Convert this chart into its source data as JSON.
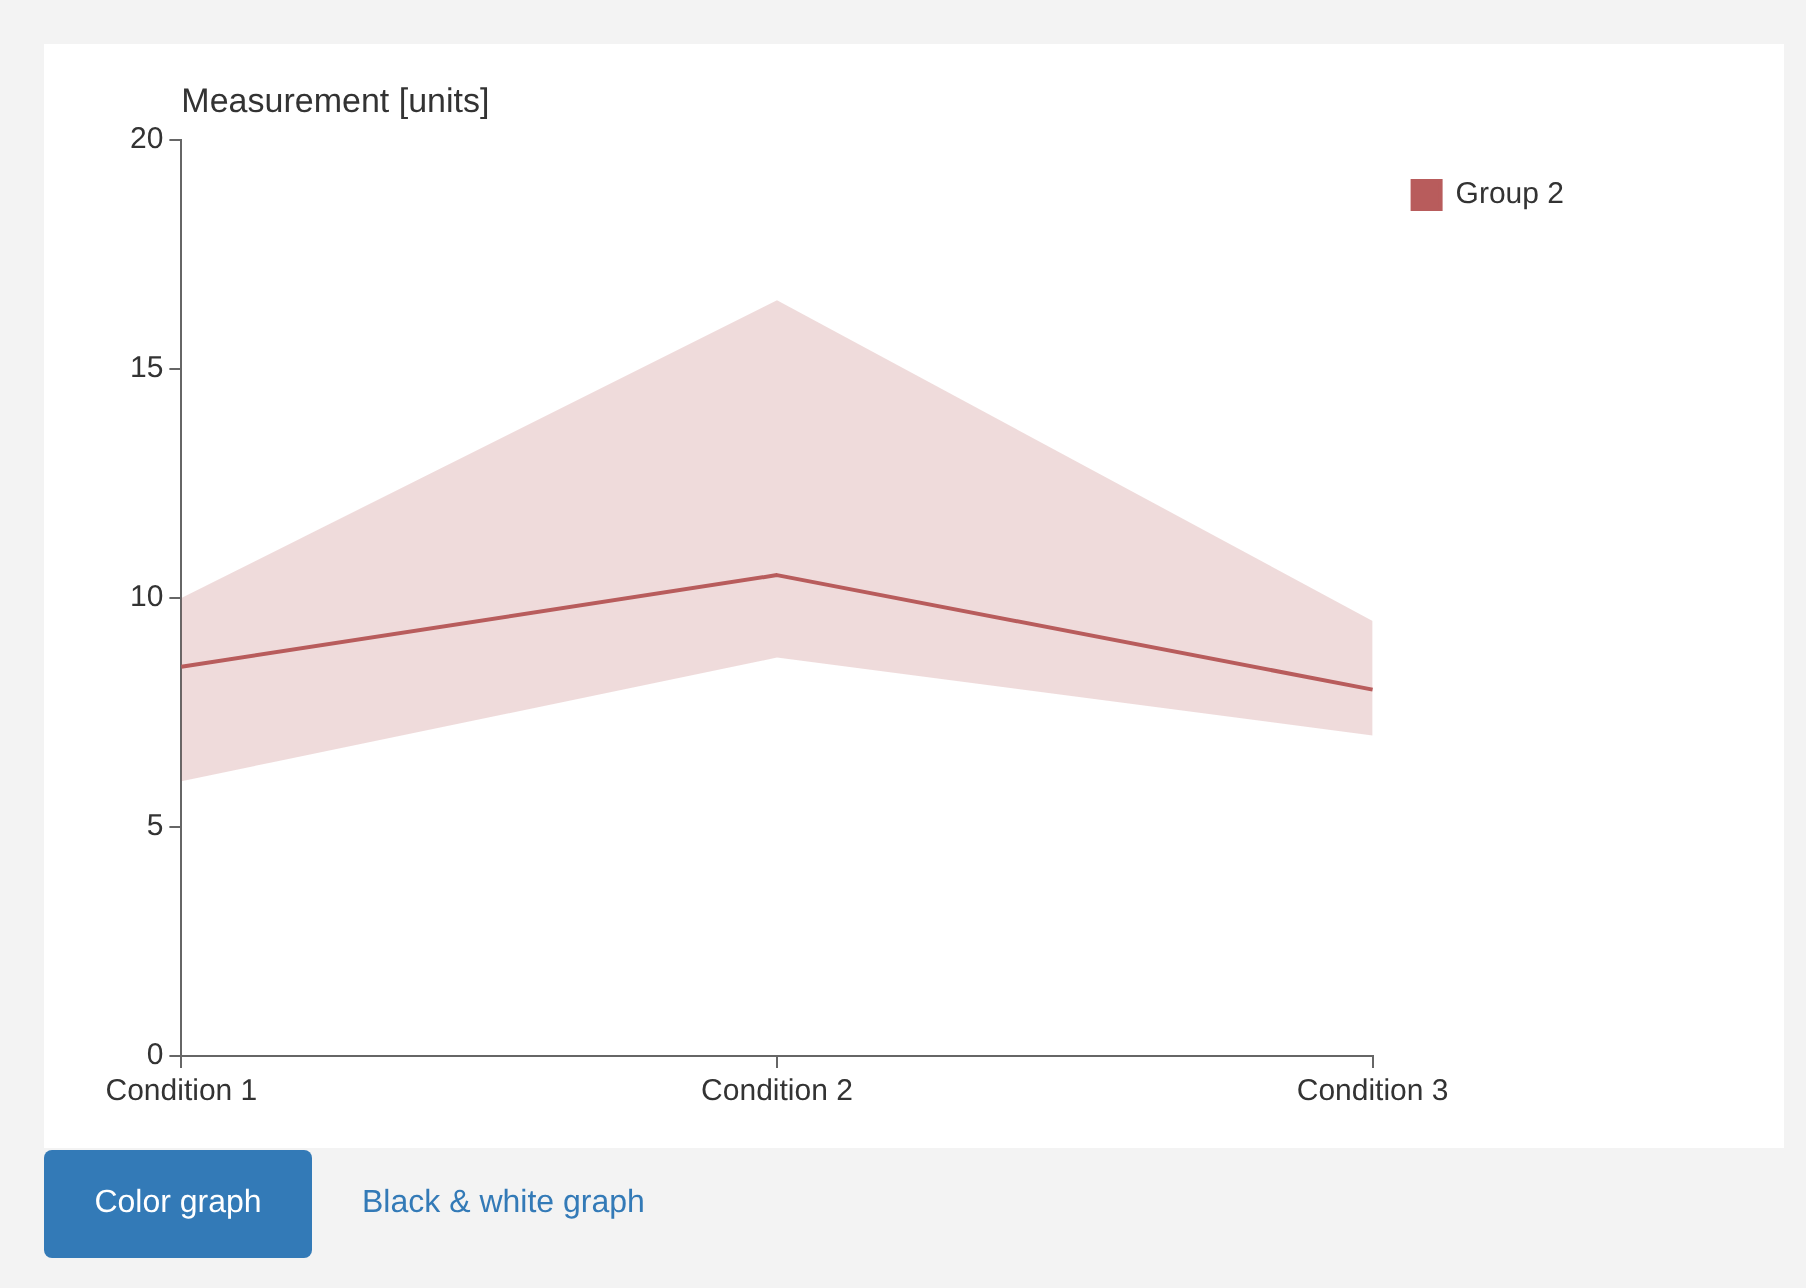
{
  "chart_data": {
    "type": "line",
    "ylabel": "Measurement [units]",
    "categories": [
      "Condition 1",
      "Condition 2",
      "Condition 3"
    ],
    "series": [
      {
        "name": "Group 2",
        "color": "#b85c5c",
        "values": [
          8.5,
          10.5,
          8.0
        ],
        "lower": [
          6.0,
          8.7,
          7.0
        ],
        "upper": [
          10.0,
          16.5,
          9.5
        ]
      }
    ],
    "ylim": [
      0,
      20
    ],
    "yticks": [
      0,
      5,
      10,
      15,
      20
    ],
    "grid": false,
    "legend": "top right",
    "marker": "none",
    "annotations": [
      "Color graph",
      "Black & white graph"
    ]
  }
}
